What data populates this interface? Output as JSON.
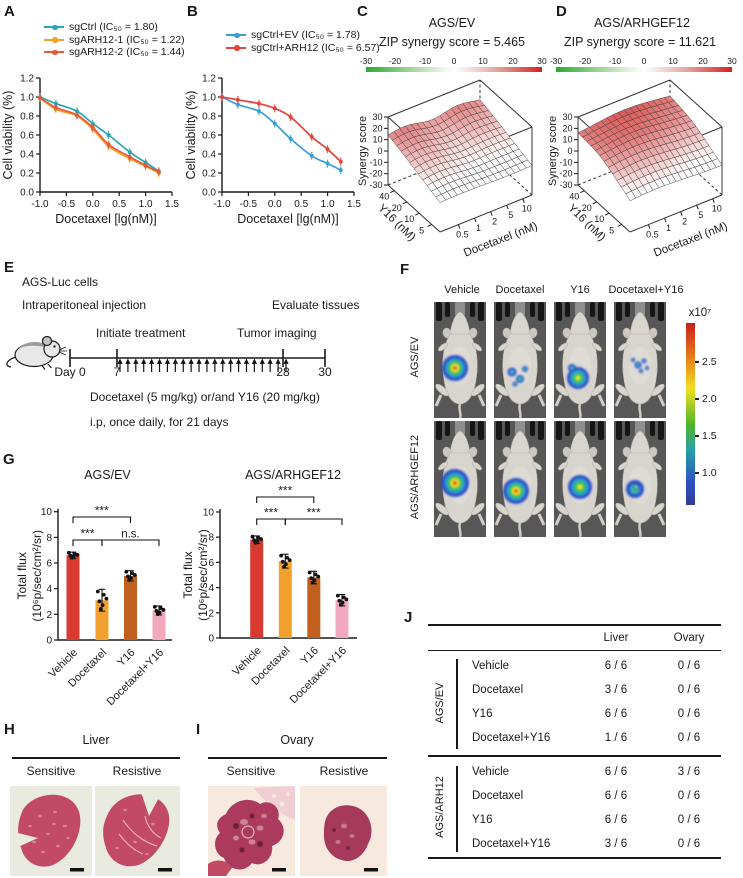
{
  "panel_labels": {
    "A": "A",
    "B": "B",
    "C": "C",
    "D": "D",
    "E": "E",
    "F": "F",
    "G": "G",
    "H": "H",
    "I": "I",
    "J": "J"
  },
  "chart_data": [
    {
      "id": "A",
      "type": "line",
      "xlabel": "Docetaxel [lg(nM)]",
      "ylabel": "Cell viability (%)",
      "xlim": [
        -1.0,
        1.5
      ],
      "ylim": [
        0.0,
        1.2
      ],
      "xticks": [
        -1.0,
        -0.5,
        0.0,
        0.5,
        1.0,
        1.5
      ],
      "yticks": [
        0.0,
        0.2,
        0.4,
        0.6,
        0.8,
        1.0,
        1.2
      ],
      "x": [
        -1.0,
        -0.7,
        -0.3,
        0.0,
        0.3,
        0.7,
        1.0,
        1.25
      ],
      "series": [
        {
          "name": "sgCtrl (IC₅₀ = 1.80)",
          "color": "#2aa7b0",
          "values": [
            1.0,
            0.93,
            0.85,
            0.72,
            0.6,
            0.42,
            0.31,
            0.22
          ]
        },
        {
          "name": "sgARH12-1 (IC₅₀ = 1.22)",
          "color": "#f5a02c",
          "values": [
            0.99,
            0.87,
            0.8,
            0.66,
            0.48,
            0.35,
            0.27,
            0.2
          ]
        },
        {
          "name": "sgARH12-2 (IC₅₀ = 1.44)",
          "color": "#e4593a",
          "values": [
            0.99,
            0.89,
            0.81,
            0.68,
            0.5,
            0.37,
            0.28,
            0.21
          ]
        }
      ]
    },
    {
      "id": "B",
      "type": "line",
      "xlabel": "Docetaxel [lg(nM)]",
      "ylabel": "Cell viability (%)",
      "xlim": [
        -1.0,
        1.5
      ],
      "ylim": [
        0.0,
        1.2
      ],
      "xticks": [
        -1.0,
        -0.5,
        0.0,
        0.5,
        1.0,
        1.5
      ],
      "yticks": [
        0.0,
        0.2,
        0.4,
        0.6,
        0.8,
        1.0,
        1.2
      ],
      "x": [
        -1.0,
        -0.7,
        -0.3,
        0.0,
        0.3,
        0.7,
        1.0,
        1.25
      ],
      "series": [
        {
          "name": "sgCtrl+EV (IC₅₀ = 1.78)",
          "color": "#3a9ed6",
          "values": [
            1.0,
            0.92,
            0.85,
            0.72,
            0.56,
            0.38,
            0.3,
            0.23
          ]
        },
        {
          "name": "sgCtrl+ARH12 (IC₅₀ = 6.57)",
          "color": "#e2453e",
          "values": [
            1.0,
            0.97,
            0.93,
            0.88,
            0.79,
            0.58,
            0.45,
            0.32
          ]
        }
      ]
    },
    {
      "id": "C",
      "type": "surface3d",
      "title": "AGS/EV",
      "subtitle": "ZIP synergy score = 5.465",
      "zlabel": "Synergy score",
      "zticks": [
        30,
        20,
        10,
        0,
        -10,
        -20,
        -30
      ],
      "xlabel": "Docetaxel (nM)",
      "xticks": [
        "0.5",
        "1",
        "2",
        "5",
        "10"
      ],
      "ylabel": "Y16 (nM)",
      "yticks": [
        "40",
        "20",
        "10",
        "5"
      ],
      "colorbar_ticks": [
        -30,
        -20,
        -10,
        0,
        10,
        20,
        30
      ],
      "colorbar_colors": [
        "#2ea82e",
        "#ffffff",
        "#d42020"
      ]
    },
    {
      "id": "D",
      "type": "surface3d",
      "title": "AGS/ARHGEF12",
      "subtitle": "ZIP synergy score = 11.621",
      "zlabel": "Synergy score",
      "zticks": [
        30,
        20,
        10,
        0,
        -10,
        -20,
        -30
      ],
      "xlabel": "Docetaxel (nM)",
      "xticks": [
        "0.5",
        "1",
        "2",
        "5",
        "10"
      ],
      "ylabel": "Y16 (nM)",
      "yticks": [
        "40",
        "20",
        "10",
        "5"
      ],
      "colorbar_ticks": [
        -30,
        -20,
        -10,
        0,
        10,
        20,
        30
      ],
      "colorbar_colors": [
        "#2ea82e",
        "#ffffff",
        "#d42020"
      ]
    },
    {
      "id": "G1",
      "type": "bar",
      "title": "AGS/EV",
      "ylabel": [
        "Total flux",
        "(10⁶p/sec/cm²/sr)"
      ],
      "ylim": [
        0,
        10
      ],
      "yticks": [
        0,
        2,
        4,
        6,
        8,
        10
      ],
      "categories": [
        "Vehicle",
        "Docetaxel",
        "Y16",
        "Docetaxel+Y16"
      ],
      "values": [
        6.6,
        3.1,
        5.0,
        2.3
      ],
      "errors": [
        0.25,
        0.85,
        0.4,
        0.35
      ],
      "colors": [
        "#d93a2f",
        "#f2a12f",
        "#c2611f",
        "#f2a9be"
      ],
      "significance": [
        {
          "from": 0,
          "to": 2,
          "label": "***",
          "row": "top"
        },
        {
          "from": 0,
          "to": 1,
          "label": "***",
          "row": "bottom"
        },
        {
          "from": 1,
          "to": 3,
          "label": "n.s.",
          "row": "bottom"
        }
      ]
    },
    {
      "id": "G2",
      "type": "bar",
      "title": "AGS/ARHGEF12",
      "ylabel": [
        "Total flux",
        "(10⁶p/sec/cm²/sr)"
      ],
      "ylim": [
        0,
        10
      ],
      "yticks": [
        0,
        2,
        4,
        6,
        8,
        10
      ],
      "categories": [
        "Vehicle",
        "Docetaxel",
        "Y16",
        "Docetaxel+Y16"
      ],
      "values": [
        7.8,
        6.1,
        4.8,
        3.0
      ],
      "errors": [
        0.3,
        0.55,
        0.5,
        0.45
      ],
      "colors": [
        "#d93a2f",
        "#f2a12f",
        "#c2611f",
        "#f2a9be"
      ],
      "significance": [
        {
          "from": 0,
          "to": 2,
          "label": "***",
          "row": "top"
        },
        {
          "from": 0,
          "to": 1,
          "label": "***",
          "row": "bottom"
        },
        {
          "from": 1,
          "to": 3,
          "label": "***",
          "row": "bottom"
        }
      ]
    }
  ],
  "panelE": {
    "cells_line": "AGS-Luc cells",
    "injection_line": "Intraperitoneal injection",
    "evaluate": "Evaluate tissues",
    "initiate": "Initiate treatment",
    "imaging": "Tumor imaging",
    "day0": "Day 0",
    "day7": "7",
    "day28": "28",
    "day30": "30",
    "dose": "Docetaxel (5 mg/kg) or/and Y16 (20 mg/kg)",
    "schedule": "i.p, once daily, for 21 days"
  },
  "panelF": {
    "columns": [
      "Vehicle",
      "Docetaxel",
      "Y16",
      "Docetaxel+Y16"
    ],
    "rows": [
      "AGS/EV",
      "AGS/ARHGEF12"
    ],
    "colorbar_label": "x10⁷",
    "colorbar_ticks": [
      "2.5",
      "2.0",
      "1.5",
      "1.0"
    ]
  },
  "panelG_heading": "",
  "panelH": {
    "title": "Liver",
    "cols": [
      "Sensitive",
      "Resistive"
    ]
  },
  "panelI": {
    "title": "Ovary",
    "cols": [
      "Sensitive",
      "Resistive"
    ]
  },
  "panelJ": {
    "columns": [
      "Liver",
      "Ovary"
    ],
    "groups": [
      {
        "name": "AGS/EV",
        "rows": [
          {
            "label": "Vehicle",
            "liver": "6 / 6",
            "ovary": "0 / 6"
          },
          {
            "label": "Docetaxel",
            "liver": "3 / 6",
            "ovary": "0 / 6"
          },
          {
            "label": "Y16",
            "liver": "6 / 6",
            "ovary": "0 / 6"
          },
          {
            "label": "Docetaxel+Y16",
            "liver": "1 / 6",
            "ovary": "0 / 6"
          }
        ]
      },
      {
        "name": "AGS/ARH12",
        "rows": [
          {
            "label": "Vehicle",
            "liver": "6 / 6",
            "ovary": "3 / 6"
          },
          {
            "label": "Docetaxel",
            "liver": "6 / 6",
            "ovary": "0 / 6"
          },
          {
            "label": "Y16",
            "liver": "6 / 6",
            "ovary": "0 / 6"
          },
          {
            "label": "Docetaxel+Y16",
            "liver": "3 / 6",
            "ovary": "0 / 6"
          }
        ]
      }
    ]
  }
}
